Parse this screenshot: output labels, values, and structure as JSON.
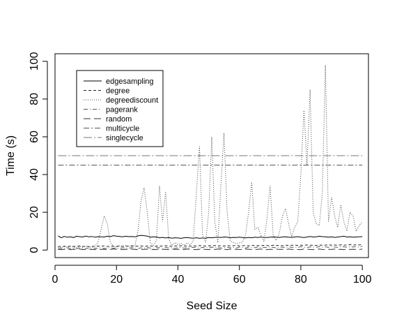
{
  "chart_data": {
    "type": "line",
    "title": "",
    "xlabel": "Seed Size",
    "ylabel": "Time (s)",
    "xlim": [
      0,
      102
    ],
    "ylim": [
      -4,
      104
    ],
    "x_ticks": [
      0,
      20,
      40,
      60,
      80,
      100
    ],
    "y_ticks": [
      0,
      20,
      40,
      60,
      80,
      100
    ],
    "grid": false,
    "legend_position": "top-left",
    "x": [
      1,
      2,
      3,
      4,
      5,
      6,
      7,
      8,
      9,
      10,
      11,
      12,
      13,
      14,
      15,
      16,
      17,
      18,
      19,
      20,
      21,
      22,
      23,
      24,
      25,
      26,
      27,
      28,
      29,
      30,
      31,
      32,
      33,
      34,
      35,
      36,
      37,
      38,
      39,
      40,
      41,
      42,
      43,
      44,
      45,
      46,
      47,
      48,
      49,
      50,
      51,
      52,
      53,
      54,
      55,
      56,
      57,
      58,
      59,
      60,
      61,
      62,
      63,
      64,
      65,
      66,
      67,
      68,
      69,
      70,
      71,
      72,
      73,
      74,
      75,
      76,
      77,
      78,
      79,
      80,
      81,
      82,
      83,
      84,
      85,
      86,
      87,
      88,
      89,
      90,
      91,
      92,
      93,
      94,
      95,
      96,
      97,
      98,
      99,
      100
    ],
    "series": [
      {
        "name": "edgesampling",
        "color": "#000000",
        "dash": "none",
        "values": [
          7.5,
          6.5,
          7.2,
          6.8,
          7.0,
          6.6,
          7.3,
          7.1,
          6.9,
          7.4,
          7.0,
          7.2,
          6.8,
          7.1,
          7.0,
          6.9,
          7.3,
          7.1,
          7.6,
          7.4,
          7.2,
          7.0,
          7.3,
          7.1,
          7.2,
          7.0,
          7.5,
          7.8,
          7.6,
          7.4,
          6.8,
          7.0,
          6.9,
          6.5,
          6.7,
          6.4,
          6.6,
          6.3,
          6.5,
          6.4,
          6.2,
          6.5,
          6.6,
          6.4,
          6.3,
          6.5,
          6.2,
          6.4,
          6.3,
          6.6,
          6.5,
          6.7,
          6.8,
          6.6,
          6.9,
          6.8,
          6.5,
          6.7,
          6.6,
          6.8,
          6.6,
          6.4,
          6.7,
          6.5,
          6.8,
          6.6,
          6.9,
          6.7,
          6.6,
          6.8,
          6.9,
          6.8,
          6.7,
          6.9,
          7.0,
          6.8,
          6.7,
          6.9,
          7.1,
          6.8,
          6.6,
          6.9,
          7.2,
          6.9,
          7.0,
          7.3,
          7.1,
          7.0,
          6.8,
          7.0,
          6.7,
          6.9,
          7.1,
          7.3,
          6.9,
          7.0,
          6.8,
          6.9,
          7.0,
          7.1
        ]
      },
      {
        "name": "degree",
        "color": "#222222",
        "dash": "4,3",
        "values": [
          1.8,
          1.9,
          2.0,
          1.8,
          2.1,
          1.9,
          2.0,
          2.2,
          1.9,
          2.0,
          1.8,
          2.0,
          1.9,
          2.1,
          2.0,
          2.2,
          1.9,
          2.0,
          2.1,
          1.9,
          2.2,
          2.0,
          1.9,
          2.1,
          2.3,
          2.0,
          2.1,
          2.2,
          2.0,
          2.1,
          2.2,
          1.9,
          2.1,
          2.0,
          2.2,
          2.3,
          2.1,
          2.0,
          2.2,
          2.1,
          2.3,
          2.1,
          2.2,
          2.0,
          2.3,
          2.1,
          2.4,
          2.2,
          2.1,
          2.3,
          2.2,
          2.4,
          2.2,
          2.3,
          2.1,
          2.4,
          2.2,
          2.3,
          2.5,
          2.2,
          2.3,
          2.4,
          2.2,
          2.5,
          2.3,
          2.4,
          2.2,
          2.5,
          2.4,
          2.3,
          2.6,
          2.4,
          2.5,
          2.3,
          2.6,
          2.4,
          2.5,
          2.7,
          2.4,
          2.6,
          2.5,
          2.7,
          2.5,
          2.6,
          2.4,
          2.7,
          2.5,
          2.6,
          2.8,
          2.6,
          2.7,
          2.5,
          2.8,
          2.6,
          2.7,
          2.9,
          2.6,
          2.8,
          2.7,
          2.9
        ]
      },
      {
        "name": "degreediscount",
        "color": "#444444",
        "dash": "1,2",
        "values": [
          1.5,
          1.2,
          1.8,
          1.4,
          2.0,
          1.6,
          1.3,
          1.9,
          1.5,
          2.1,
          1.7,
          1.4,
          2.0,
          4.0,
          11.0,
          18.0,
          14.0,
          4.0,
          2.0,
          1.6,
          2.2,
          1.8,
          2.4,
          2.0,
          1.7,
          2.3,
          10.0,
          26.0,
          33.0,
          20.0,
          4.0,
          2.5,
          5.0,
          34.0,
          15.0,
          31.0,
          6.0,
          2.5,
          4.0,
          2.8,
          3.5,
          2.6,
          3.8,
          2.7,
          5.0,
          30.0,
          55.0,
          8.0,
          4.0,
          20.0,
          60.0,
          15.0,
          4.0,
          35.0,
          62.0,
          20.0,
          5.0,
          4.0,
          3.5,
          3.8,
          4.2,
          8.0,
          20.0,
          36.0,
          11.0,
          12.0,
          8.0,
          4.5,
          17.0,
          34.0,
          8.0,
          5.0,
          9.0,
          18.0,
          22.0,
          14.0,
          7.0,
          12.0,
          15.0,
          40.0,
          74.0,
          45.0,
          85.0,
          20.0,
          14.0,
          13.0,
          30.0,
          98.0,
          15.0,
          28.0,
          18.0,
          12.0,
          24.0,
          15.0,
          10.0,
          20.0,
          18.0,
          10.0,
          13.0,
          15.0
        ]
      },
      {
        "name": "pagerank",
        "color": "#555555",
        "dash": "6,3,1,3",
        "values": [
          0.7,
          0.9,
          0.6,
          1.1,
          0.8,
          1.0,
          0.7,
          1.2,
          0.9,
          0.8,
          1.1,
          0.7,
          1.0,
          0.9,
          1.2,
          0.8,
          1.0,
          1.3,
          0.9,
          1.1,
          0.8,
          1.2,
          1.0,
          0.9,
          1.3,
          1.1,
          0.8,
          1.2,
          1.0,
          1.4,
          1.1,
          0.9,
          1.3,
          1.2,
          1.0,
          1.4,
          1.1,
          1.3,
          0.9,
          1.2,
          1.4,
          1.0,
          1.3,
          1.1,
          1.5,
          1.2,
          1.0,
          1.4,
          1.3,
          1.1,
          1.5,
          1.2,
          1.4,
          1.0,
          1.3,
          1.5,
          1.2,
          1.4,
          1.1,
          1.6,
          1.3,
          1.1,
          1.5,
          1.4,
          1.2,
          1.6,
          1.3,
          1.5,
          1.2,
          1.7,
          1.4,
          1.2,
          1.6,
          1.5,
          1.3,
          1.7,
          1.4,
          1.6,
          1.3,
          1.8,
          1.5,
          1.3,
          1.7,
          1.6,
          1.4,
          1.8,
          1.5,
          1.7,
          1.4,
          1.9,
          1.6,
          1.4,
          1.8,
          1.7,
          1.5,
          1.9,
          1.6,
          1.8,
          1.5,
          2.0
        ]
      },
      {
        "name": "random",
        "color": "#333333",
        "dash": "10,5",
        "values": [
          0.3,
          0.2,
          0.4,
          0.3,
          0.2,
          0.4,
          0.3,
          0.5,
          0.2,
          0.3,
          0.4,
          0.3,
          0.2,
          0.5,
          0.3,
          0.4,
          0.2,
          0.3,
          0.5,
          0.4,
          0.3,
          0.2,
          0.4,
          0.3,
          0.5,
          0.3,
          0.2,
          0.4,
          0.3,
          0.5,
          0.4,
          0.2,
          0.3,
          0.5,
          0.3,
          0.4,
          0.2,
          0.5,
          0.3,
          0.4,
          0.3,
          0.2,
          0.5,
          0.4,
          0.3,
          0.2,
          0.4,
          0.5,
          0.3,
          0.2,
          0.4,
          0.3,
          0.5,
          0.3,
          0.4,
          0.2,
          0.5,
          0.3,
          0.4,
          0.3,
          0.2,
          0.5,
          0.4,
          0.3,
          0.2,
          0.4,
          0.5,
          0.3,
          0.2,
          0.4,
          0.3,
          0.5,
          0.3,
          0.4,
          0.2,
          0.5,
          0.3,
          0.4,
          0.3,
          0.2,
          0.5,
          0.4,
          0.3,
          0.2,
          0.4,
          0.5,
          0.3,
          0.2,
          0.4,
          0.3,
          0.5,
          0.3,
          0.4,
          0.2,
          0.5,
          0.3,
          0.4,
          0.3,
          0.2,
          0.5
        ]
      },
      {
        "name": "multicycle",
        "color": "#555555",
        "dash": "8,3,2,3",
        "values": [
          45,
          45,
          45,
          45,
          45,
          45,
          45,
          45,
          45,
          45,
          45,
          45,
          45,
          45,
          45,
          45,
          45,
          45,
          45,
          45,
          45,
          45,
          45,
          45,
          45,
          45,
          45,
          45,
          45,
          45,
          45,
          45,
          45,
          45,
          45,
          45,
          45,
          45,
          45,
          45,
          45,
          45,
          45,
          45,
          45,
          45,
          45,
          45,
          45,
          45,
          45,
          45,
          45,
          45,
          45,
          45,
          45,
          45,
          45,
          45,
          45,
          45,
          45,
          45,
          45,
          45,
          45,
          45,
          45,
          45,
          45,
          45,
          45,
          45,
          45,
          45,
          45,
          45,
          45,
          45,
          45,
          45,
          45,
          45,
          45,
          45,
          45,
          45,
          45,
          45,
          45,
          45,
          45,
          45,
          45,
          45,
          45,
          45,
          45,
          45
        ]
      },
      {
        "name": "singlecycle",
        "color": "#777777",
        "dash": "12,3,2,3",
        "values": [
          50,
          50,
          50,
          50,
          50,
          50,
          50,
          50,
          50,
          50,
          50,
          50,
          50,
          50,
          50,
          50,
          50,
          50,
          50,
          50,
          50,
          50,
          50,
          50,
          50,
          50,
          50,
          50,
          50,
          50,
          50,
          50,
          50,
          50,
          50,
          50,
          50,
          50,
          50,
          50,
          50,
          50,
          50,
          50,
          50,
          50,
          50,
          50,
          50,
          50,
          50,
          50,
          50,
          50,
          50,
          50,
          50,
          50,
          50,
          50,
          50,
          50,
          50,
          50,
          50,
          50,
          50,
          50,
          50,
          50,
          50,
          50,
          50,
          50,
          50,
          50,
          50,
          50,
          50,
          50,
          50,
          50,
          50,
          50,
          50,
          50,
          50,
          50,
          50,
          50,
          50,
          50,
          50,
          50,
          50,
          50,
          50,
          50,
          50,
          50
        ]
      }
    ]
  }
}
